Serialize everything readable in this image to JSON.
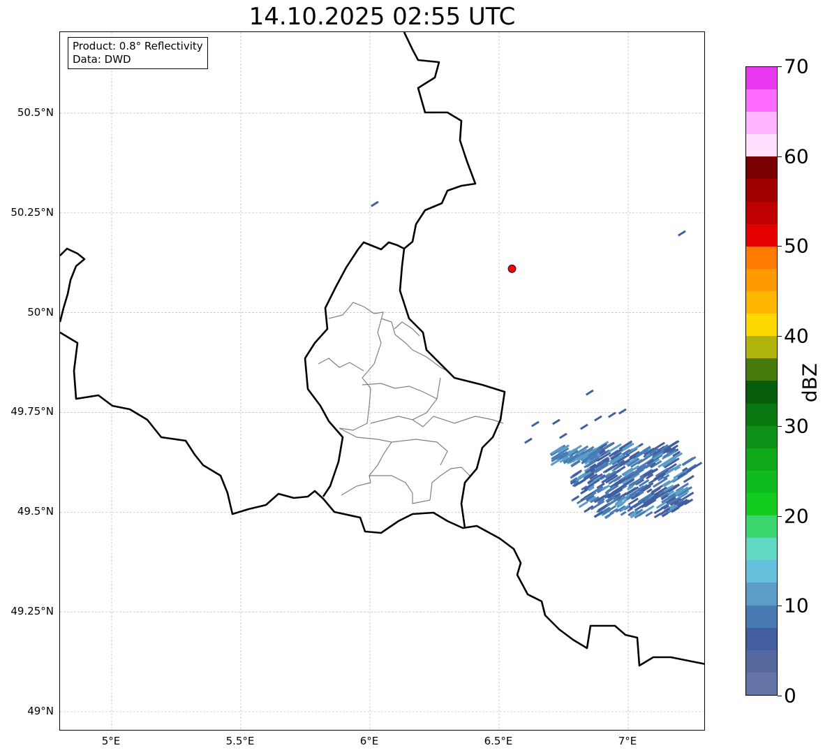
{
  "title": "14.10.2025 02:55 UTC",
  "info": {
    "product": "Product: 0.8° Reflectivity",
    "data": "Data: DWD"
  },
  "axes": {
    "lon_range": [
      4.8,
      7.3
    ],
    "lat_range": [
      48.95,
      50.7
    ],
    "x_ticks": [
      {
        "value": 5,
        "label": "5°E"
      },
      {
        "value": 5.5,
        "label": "5.5°E"
      },
      {
        "value": 6,
        "label": "6°E"
      },
      {
        "value": 6.5,
        "label": "6.5°E"
      },
      {
        "value": 7,
        "label": "7°E"
      }
    ],
    "y_ticks": [
      {
        "value": 50.5,
        "label": "50.5°N"
      },
      {
        "value": 50.25,
        "label": "50.25°N"
      },
      {
        "value": 50,
        "label": "50°N"
      },
      {
        "value": 49.75,
        "label": "49.75°N"
      },
      {
        "value": 49.5,
        "label": "49.5°N"
      },
      {
        "value": 49.25,
        "label": "49.25°N"
      },
      {
        "value": 49,
        "label": "49°N"
      }
    ]
  },
  "radar_site": {
    "lon": 6.55,
    "lat": 50.11,
    "color": "#ff0000"
  },
  "colorbar": {
    "label": "dBZ",
    "range": [
      0,
      70
    ],
    "ticks": [
      {
        "value": 0,
        "label": "0"
      },
      {
        "value": 10,
        "label": "10"
      },
      {
        "value": 20,
        "label": "20"
      },
      {
        "value": 30,
        "label": "30"
      },
      {
        "value": 40,
        "label": "40"
      },
      {
        "value": 50,
        "label": "50"
      },
      {
        "value": 60,
        "label": "60"
      },
      {
        "value": 70,
        "label": "70"
      }
    ],
    "colors": [
      "#6474a6",
      "#55699f",
      "#425ea0",
      "#4a7ab4",
      "#5a9ec8",
      "#64c0dc",
      "#60d8c4",
      "#3cd66e",
      "#12cc1e",
      "#10bb1e",
      "#0ea818",
      "#0c9018",
      "#0a7810",
      "#065e0c",
      "#467a0a",
      "#b0b40a",
      "#ffd800",
      "#ffb600",
      "#ff9a00",
      "#ff7c00",
      "#e40000",
      "#c00000",
      "#a00000",
      "#780000",
      "#ffe0ff",
      "#ffb4ff",
      "#ff6cff",
      "#e838f0"
    ]
  }
}
